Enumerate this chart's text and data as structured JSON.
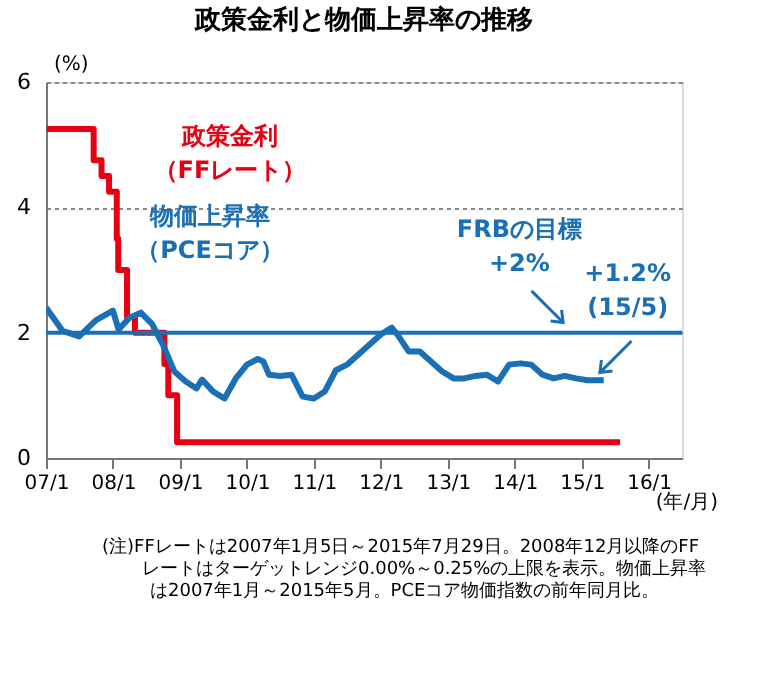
{
  "chart_data": {
    "type": "line",
    "title": "政策金利と物価上昇率の推移",
    "xlabel": "(年/月)",
    "ylabel": "(%)",
    "xlim": [
      "2007-01",
      "2016-07"
    ],
    "xticks": [
      {
        "value": "2007-01",
        "label": "07/1"
      },
      {
        "value": "2008-01",
        "label": "08/1"
      },
      {
        "value": "2009-01",
        "label": "09/1"
      },
      {
        "value": "2010-01",
        "label": "10/1"
      },
      {
        "value": "2011-01",
        "label": "11/1"
      },
      {
        "value": "2012-01",
        "label": "12/1"
      },
      {
        "value": "2013-01",
        "label": "13/1"
      },
      {
        "value": "2014-01",
        "label": "14/1"
      },
      {
        "value": "2015-01",
        "label": "15/1"
      },
      {
        "value": "2016-01",
        "label": "16/1"
      }
    ],
    "ylim": [
      0,
      6
    ],
    "yticks": [
      0,
      2,
      4,
      6
    ],
    "grid": "y",
    "series": [
      {
        "name": "政策金利（FFレート）",
        "color": "#e60012",
        "type": "step",
        "x": [
          "2007-01-05",
          "2007-09-18",
          "2007-10-31",
          "2007-12-11",
          "2008-01-22",
          "2008-01-30",
          "2008-03-18",
          "2008-04-30",
          "2008-10-08",
          "2008-10-29",
          "2008-12-16",
          "2015-07-29"
        ],
        "values": [
          5.25,
          4.75,
          4.5,
          4.25,
          3.5,
          3.0,
          2.25,
          2.0,
          1.5,
          1.0,
          0.25,
          0.25
        ]
      },
      {
        "name": "物価上昇率（PCEコア）",
        "color": "#1a6fb5",
        "x": [
          "2007-01",
          "2007-04",
          "2007-07",
          "2007-10",
          "2008-01",
          "2008-02",
          "2008-04",
          "2008-06",
          "2008-08",
          "2008-10",
          "2008-12",
          "2009-02",
          "2009-04",
          "2009-05",
          "2009-07",
          "2009-09",
          "2009-11",
          "2010-01",
          "2010-03",
          "2010-04",
          "2010-05",
          "2010-07",
          "2010-09",
          "2010-11",
          "2011-01",
          "2011-03",
          "2011-05",
          "2011-07",
          "2011-09",
          "2011-11",
          "2012-01",
          "2012-03",
          "2012-04",
          "2012-06",
          "2012-08",
          "2012-10",
          "2012-12",
          "2013-02",
          "2013-04",
          "2013-06",
          "2013-08",
          "2013-10",
          "2013-12",
          "2014-02",
          "2014-04",
          "2014-06",
          "2014-08",
          "2014-10",
          "2014-12",
          "2015-02",
          "2015-05"
        ],
        "values": [
          2.4,
          2.03,
          1.94,
          2.2,
          2.35,
          2.05,
          2.24,
          2.32,
          2.14,
          1.8,
          1.38,
          1.22,
          1.11,
          1.25,
          1.06,
          0.95,
          1.27,
          1.49,
          1.58,
          1.54,
          1.33,
          1.31,
          1.33,
          0.98,
          0.95,
          1.06,
          1.4,
          1.49,
          1.65,
          1.81,
          1.97,
          2.08,
          1.97,
          1.7,
          1.7,
          1.54,
          1.38,
          1.27,
          1.27,
          1.31,
          1.33,
          1.22,
          1.49,
          1.51,
          1.49,
          1.33,
          1.27,
          1.31,
          1.27,
          1.24,
          1.24
        ]
      }
    ],
    "ref_lines": [
      {
        "axis": "y",
        "value": 2,
        "color": "#1a6fb5",
        "line_style": "solid"
      }
    ],
    "annotations": [
      {
        "text": "FRBの目標\n+2%",
        "x": "2014-09",
        "y": 2
      },
      {
        "text": "+1.2%\n(15/5)",
        "x": "2015-05",
        "y": 1.2
      },
      "(注)FFレートは2007年1月5日～2015年7月29日。2008年12月以降のFF",
      "レートはターゲットレンジ0.00%～0.25%の上限を表示。物価上昇率",
      "は2007年1月～2015年5月。PCEコア物価指数の前年同月比。"
    ]
  }
}
